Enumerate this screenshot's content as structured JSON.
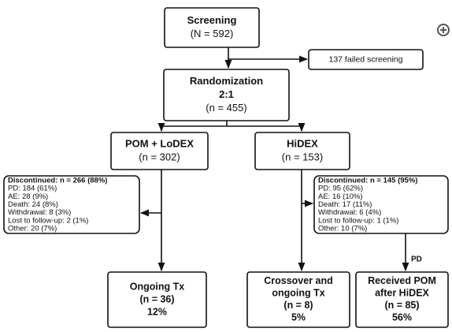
{
  "nodes": [
    {
      "lines": [
        "Screening",
        "(N = 592)"
      ]
    },
    {
      "lines": [
        "137 failed screening"
      ]
    },
    {
      "lines": [
        "Randomization",
        "2:1",
        "(n = 455)"
      ]
    },
    {
      "lines": [
        "POM + LoDEX",
        "(n = 302)"
      ]
    },
    {
      "lines": [
        "HiDEX",
        "(n = 153)"
      ]
    },
    {
      "lines": [
        "Discontinued: n = 266 (88%)",
        "PD: 184 (61%)",
        "AE: 28 (9%)",
        "Death: 24 (8%)",
        "Withdrawal: 8 (3%)",
        "Lost to follow-up: 2 (1%)",
        "Other: 20 (7%)"
      ]
    },
    {
      "lines": [
        "Discontinued: n = 145 (95%)",
        "PD: 95 (62%)",
        "AE: 16 (10%)",
        "Death: 17 (11%)",
        "Withdrawal: 6 (4%)",
        "Lost to follow-up: 1 (1%)",
        "Other: 10 (7%)"
      ]
    },
    {
      "lines": [
        "Ongoing Tx",
        "(n = 36)",
        "12%"
      ]
    },
    {
      "lines": [
        "Crossover and",
        "ongoing Tx",
        "(n = 8)",
        "5%"
      ]
    },
    {
      "lines": [
        "Received POM",
        "after HiDEX",
        "(n = 85)",
        "56%"
      ]
    }
  ],
  "edges": [
    {
      "label": "PD"
    }
  ]
}
